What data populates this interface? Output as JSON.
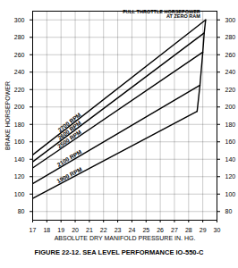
{
  "chart_data": {
    "type": "line",
    "title": "FIGURE 22-12. SEA LEVEL PERFORMANCE IO-550-C",
    "x_label": "ABSOLUTE DRY MANIFOLD PRESSURE IN. HG.",
    "y_label": "BRAKE HORSEPOWER",
    "xlim": [
      17,
      30
    ],
    "xticks": [
      17,
      18,
      19,
      20,
      21,
      22,
      23,
      24,
      25,
      26,
      27,
      28,
      29,
      30
    ],
    "ylim": [
      70,
      310
    ],
    "yticks": [
      80,
      100,
      120,
      140,
      160,
      180,
      200,
      220,
      240,
      260,
      280,
      300
    ],
    "grid": true,
    "color": "#000000",
    "series": [
      {
        "name": "2700 RPM",
        "x": [
          17,
          29.2
        ],
        "values": [
          145,
          300
        ]
      },
      {
        "name": "2600 RPM",
        "x": [
          17,
          29.1
        ],
        "values": [
          137,
          285
        ]
      },
      {
        "name": "2500 RPM",
        "x": [
          17,
          29.0
        ],
        "values": [
          130,
          263
        ]
      },
      {
        "name": "2100 RPM",
        "x": [
          17,
          28.8
        ],
        "values": [
          112,
          225
        ]
      },
      {
        "name": "1900 RPM",
        "x": [
          17,
          28.6
        ],
        "values": [
          95,
          195
        ]
      },
      {
        "name": "FULL THROTTLE HORSEPOWER\nAT ZERO RAM",
        "x": [
          28.6,
          28.8,
          29.0,
          29.1,
          29.2
        ],
        "values": [
          195,
          225,
          263,
          285,
          300
        ]
      }
    ]
  }
}
